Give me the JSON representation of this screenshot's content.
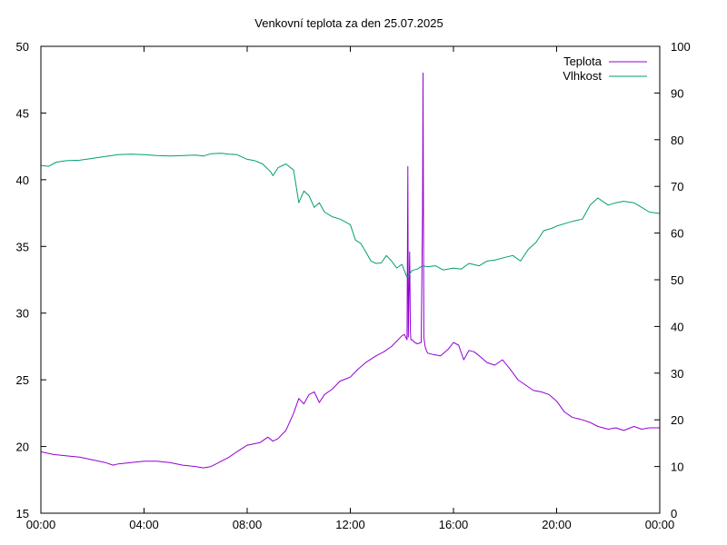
{
  "chart_data": {
    "type": "line",
    "title": "Venkovní teplota za den 25.07.2025",
    "xlabel": "",
    "ylabel": "",
    "y2label": "",
    "x_unit": "hours",
    "xlim": [
      0,
      24
    ],
    "ylim": [
      15,
      50
    ],
    "y2lim": [
      0,
      100
    ],
    "x_ticks": [
      0,
      4,
      8,
      12,
      16,
      20,
      24
    ],
    "x_tick_labels": [
      "00:00",
      "04:00",
      "08:00",
      "12:00",
      "16:00",
      "20:00",
      "00:00"
    ],
    "y_ticks": [
      15,
      20,
      25,
      30,
      35,
      40,
      45,
      50
    ],
    "y2_ticks": [
      0,
      10,
      20,
      30,
      40,
      50,
      60,
      70,
      80,
      90,
      100
    ],
    "grid": false,
    "legend_position": "top-right",
    "series": [
      {
        "name": "Teplota",
        "axis": "left",
        "color": "#9400d3",
        "x": [
          0,
          0.5,
          1,
          1.5,
          2,
          2.5,
          2.8,
          3,
          3.5,
          4,
          4.5,
          5,
          5.5,
          6,
          6.3,
          6.6,
          7,
          7.3,
          7.6,
          8,
          8.5,
          8.8,
          9.0,
          9.2,
          9.5,
          9.8,
          10.0,
          10.2,
          10.4,
          10.6,
          10.8,
          11.0,
          11.3,
          11.6,
          12.0,
          12.3,
          12.6,
          13.0,
          13.3,
          13.6,
          14.0,
          14.1,
          14.2,
          14.23,
          14.25,
          14.3,
          14.33,
          14.35,
          14.4,
          14.5,
          14.6,
          14.75,
          14.8,
          14.82,
          14.85,
          14.9,
          14.95,
          15.0,
          15.2,
          15.5,
          15.8,
          16.0,
          16.2,
          16.4,
          16.6,
          16.8,
          17.0,
          17.3,
          17.6,
          17.9,
          18.2,
          18.5,
          18.8,
          19.1,
          19.4,
          19.7,
          20.0,
          20.3,
          20.6,
          21.0,
          21.3,
          21.6,
          22.0,
          22.3,
          22.6,
          23.0,
          23.3,
          23.6,
          24.0
        ],
        "values": [
          19.6,
          19.4,
          19.3,
          19.2,
          19.0,
          18.8,
          18.6,
          18.7,
          18.8,
          18.9,
          18.9,
          18.8,
          18.6,
          18.5,
          18.4,
          18.5,
          18.9,
          19.2,
          19.6,
          20.1,
          20.3,
          20.7,
          20.4,
          20.6,
          21.2,
          22.5,
          23.6,
          23.2,
          23.9,
          24.1,
          23.3,
          23.9,
          24.3,
          24.9,
          25.2,
          25.8,
          26.3,
          26.8,
          27.1,
          27.5,
          28.3,
          28.4,
          28.0,
          41.0,
          28.2,
          34.6,
          28.6,
          28.0,
          28.0,
          27.8,
          27.7,
          27.8,
          37.8,
          48.0,
          28.2,
          27.5,
          27.2,
          27.0,
          26.9,
          26.8,
          27.3,
          27.8,
          27.6,
          26.5,
          27.2,
          27.1,
          26.8,
          26.3,
          26.1,
          26.5,
          25.8,
          25.0,
          24.6,
          24.2,
          24.1,
          23.9,
          23.4,
          22.6,
          22.2,
          22.0,
          21.8,
          21.5,
          21.3,
          21.4,
          21.2,
          21.5,
          21.3,
          21.4,
          21.4
        ]
      },
      {
        "name": "Vlhkost",
        "axis": "right",
        "color": "#009e73",
        "x": [
          0,
          0.3,
          0.6,
          1,
          1.5,
          2,
          2.5,
          3,
          3.5,
          4,
          4.5,
          5,
          5.5,
          6,
          6.3,
          6.6,
          7,
          7.3,
          7.6,
          8,
          8.3,
          8.6,
          8.9,
          9.0,
          9.2,
          9.5,
          9.8,
          10.0,
          10.2,
          10.4,
          10.6,
          10.8,
          11.0,
          11.3,
          11.6,
          12.0,
          12.2,
          12.4,
          12.6,
          12.8,
          13.0,
          13.2,
          13.4,
          13.6,
          13.8,
          14.0,
          14.2,
          14.4,
          14.6,
          14.8,
          15.0,
          15.3,
          15.6,
          16.0,
          16.3,
          16.6,
          17.0,
          17.3,
          17.6,
          18.0,
          18.3,
          18.6,
          18.9,
          19.2,
          19.5,
          19.8,
          20.0,
          20.3,
          20.6,
          21.0,
          21.3,
          21.6,
          22.0,
          22.3,
          22.6,
          23.0,
          23.3,
          23.6,
          24.0
        ],
        "values": [
          74.5,
          74.3,
          75.2,
          75.5,
          75.6,
          76.0,
          76.4,
          76.8,
          76.9,
          76.8,
          76.6,
          76.5,
          76.6,
          76.7,
          76.5,
          77.0,
          77.1,
          76.9,
          76.8,
          75.8,
          75.5,
          74.8,
          73.2,
          72.3,
          74.0,
          74.8,
          73.5,
          66.5,
          69.0,
          68.0,
          65.5,
          66.5,
          64.5,
          63.5,
          63.0,
          61.8,
          58.5,
          57.8,
          56.0,
          54.0,
          53.5,
          53.6,
          55.2,
          54.0,
          52.5,
          53.3,
          50.5,
          52.0,
          52.3,
          53.0,
          52.8,
          53.0,
          52.1,
          52.5,
          52.3,
          53.5,
          53.0,
          54.0,
          54.2,
          54.8,
          55.2,
          54.0,
          56.5,
          58.0,
          60.5,
          61.0,
          61.5,
          62.0,
          62.5,
          63.0,
          66.0,
          67.5,
          66.0,
          66.5,
          66.8,
          66.5,
          65.5,
          64.5,
          64.2
        ]
      }
    ]
  }
}
